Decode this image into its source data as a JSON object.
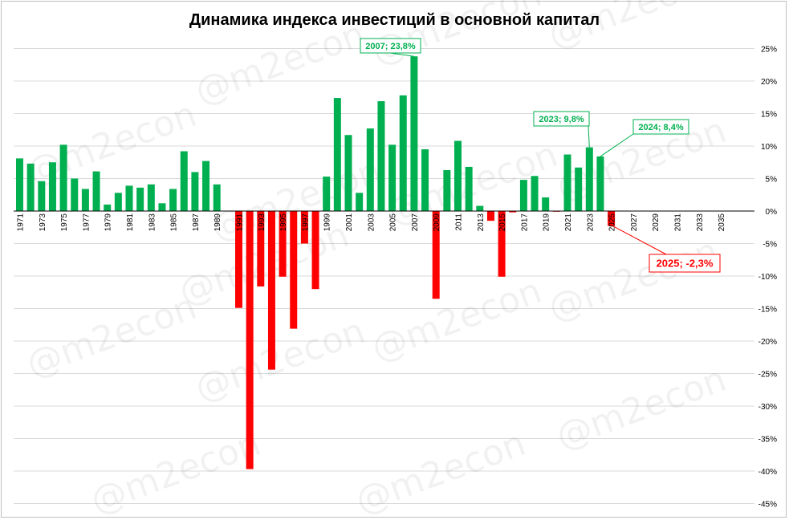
{
  "chart_data": {
    "type": "bar",
    "title": "Динамика индекса инвестиций в основной капитал",
    "xlabel": "",
    "ylabel": "",
    "ylim": [
      -45,
      25
    ],
    "y_ticks": [
      25,
      20,
      15,
      10,
      5,
      0,
      -5,
      -10,
      -15,
      -20,
      -25,
      -30,
      -35,
      -40,
      -45
    ],
    "y_tick_labels": [
      "25%",
      "20%",
      "15%",
      "10%",
      "5%",
      "0%",
      "-5%",
      "-10%",
      "-15%",
      "-20%",
      "-25%",
      "-30%",
      "-35%",
      "-40%",
      "-45%"
    ],
    "x_tick_labels": [
      "1971",
      "1973",
      "1975",
      "1977",
      "1979",
      "1981",
      "1983",
      "1985",
      "1987",
      "1989",
      "1991",
      "1993",
      "1995",
      "1997",
      "1999",
      "2001",
      "2003",
      "2005",
      "2007",
      "2009",
      "2011",
      "2013",
      "2015",
      "2017",
      "2019",
      "2021",
      "2023",
      "2025",
      "2027",
      "2029",
      "2031",
      "2033",
      "2035"
    ],
    "x": [
      1971,
      1972,
      1973,
      1974,
      1975,
      1976,
      1977,
      1978,
      1979,
      1980,
      1981,
      1982,
      1983,
      1984,
      1985,
      1986,
      1987,
      1988,
      1989,
      1990,
      1991,
      1992,
      1993,
      1994,
      1995,
      1996,
      1997,
      1998,
      1999,
      2000,
      2001,
      2002,
      2003,
      2004,
      2005,
      2006,
      2007,
      2008,
      2009,
      2010,
      2011,
      2012,
      2013,
      2014,
      2015,
      2016,
      2017,
      2018,
      2019,
      2020,
      2021,
      2022,
      2023,
      2024,
      2025
    ],
    "values": [
      8.1,
      7.3,
      4.6,
      7.5,
      10.2,
      5.0,
      3.4,
      6.1,
      1.0,
      2.8,
      3.9,
      3.6,
      4.1,
      1.2,
      3.4,
      9.2,
      6.0,
      7.7,
      4.1,
      null,
      -14.9,
      -39.7,
      -11.6,
      -24.4,
      -10.1,
      -18.1,
      -5.0,
      -12.0,
      5.3,
      17.4,
      11.7,
      2.8,
      12.7,
      16.9,
      10.2,
      17.8,
      23.8,
      9.5,
      -13.5,
      6.3,
      10.8,
      6.8,
      0.8,
      -1.5,
      -10.1,
      -0.2,
      4.8,
      5.4,
      2.1,
      -0.1,
      8.7,
      6.7,
      9.8,
      8.4,
      -2.3
    ],
    "colors": {
      "positive": "#00b050",
      "negative": "#ff0000",
      "grid": "#d9d9d9"
    },
    "grid": true,
    "legend": "none",
    "annotations": [
      {
        "label": "2007; 23,8%",
        "year": 2007,
        "value": 23.8,
        "color": "#00b050"
      },
      {
        "label": "2023; 9,8%",
        "year": 2023,
        "value": 9.8,
        "color": "#00b050"
      },
      {
        "label": "2024; 8,4%",
        "year": 2024,
        "value": 8.4,
        "color": "#00b050"
      },
      {
        "label": "2025; -2,3%",
        "year": 2025,
        "value": -2.3,
        "color": "#ff0000"
      }
    ],
    "watermark": "@m2econ"
  }
}
